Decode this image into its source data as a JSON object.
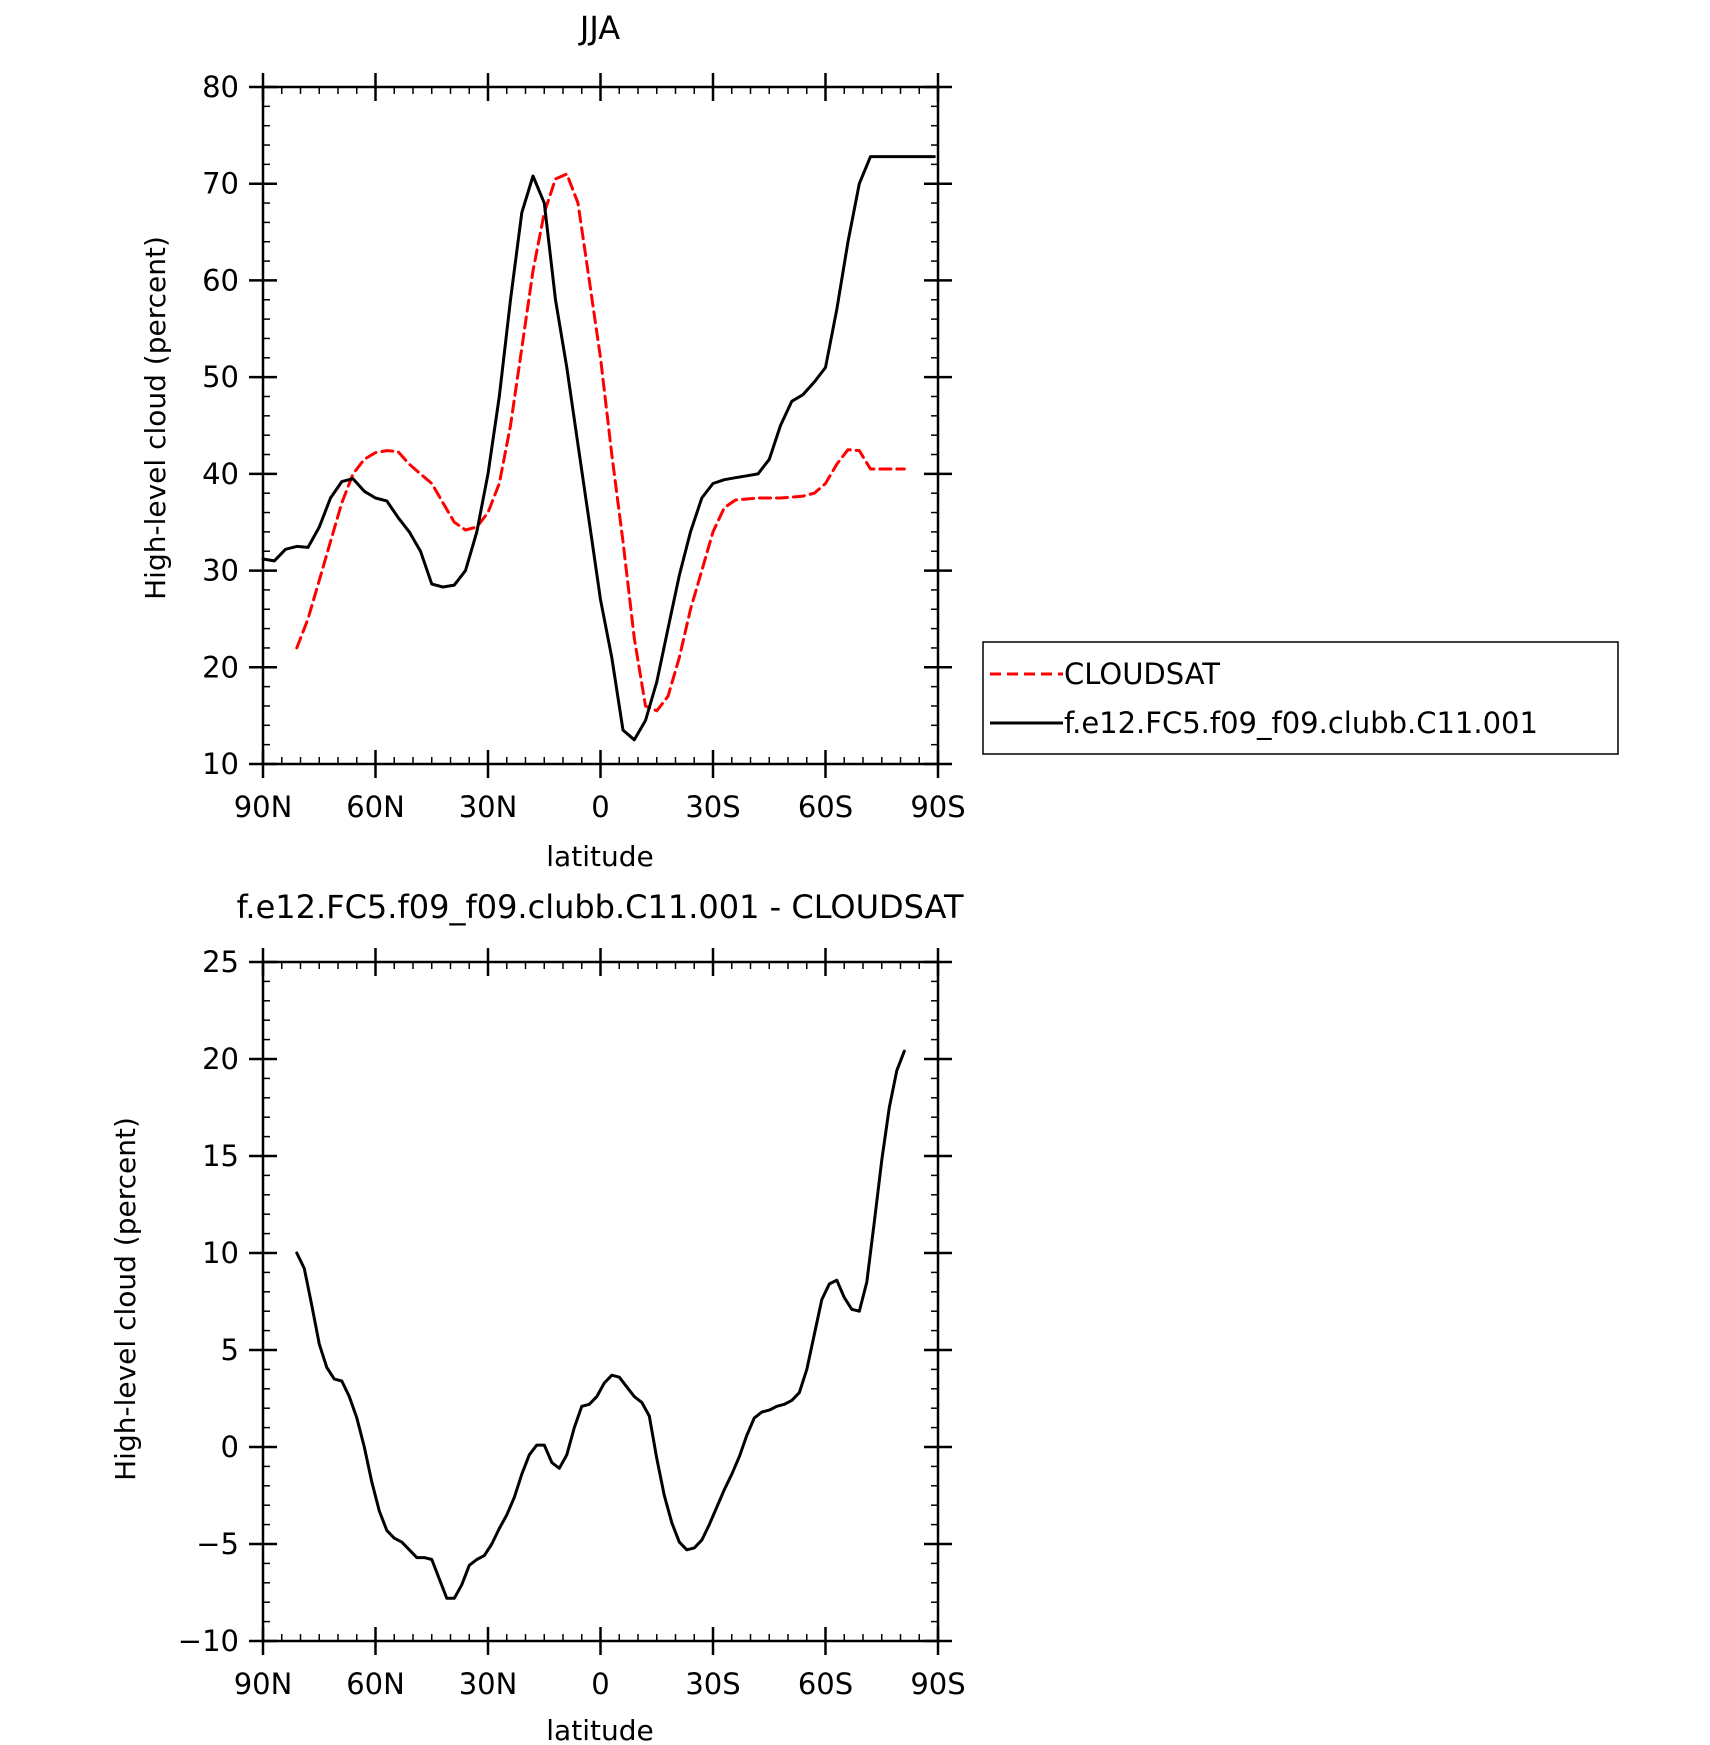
{
  "chart_data": [
    {
      "type": "line",
      "title": "JJA",
      "xlabel": "latitude",
      "ylabel": "High-level cloud (percent)",
      "xlim": [
        90,
        -90
      ],
      "ylim": [
        10,
        80
      ],
      "x_ticks": [
        {
          "value": 90,
          "label": "90N"
        },
        {
          "value": 60,
          "label": "60N"
        },
        {
          "value": 30,
          "label": "30N"
        },
        {
          "value": 0,
          "label": "0"
        },
        {
          "value": -30,
          "label": "30S"
        },
        {
          "value": -60,
          "label": "60S"
        },
        {
          "value": -90,
          "label": "90S"
        }
      ],
      "y_ticks": [
        {
          "value": 10,
          "label": "10"
        },
        {
          "value": 20,
          "label": "20"
        },
        {
          "value": 30,
          "label": "30"
        },
        {
          "value": 40,
          "label": "40"
        },
        {
          "value": 50,
          "label": "50"
        },
        {
          "value": 60,
          "label": "60"
        },
        {
          "value": 70,
          "label": "70"
        },
        {
          "value": 80,
          "label": "80"
        }
      ],
      "legend": "right",
      "series": [
        {
          "name": "CLOUDSAT",
          "color": "#ff0000",
          "dash": "dashed",
          "x": [
            81,
            78,
            75,
            72,
            69,
            66,
            63,
            60,
            57,
            54,
            51,
            48,
            45,
            42,
            39,
            36,
            33,
            30,
            27,
            24,
            21,
            18,
            15,
            12,
            9,
            6,
            3,
            0,
            -3,
            -6,
            -9,
            -12,
            -15,
            -18,
            -21,
            -24,
            -27,
            -30,
            -33,
            -36,
            -39,
            -42,
            -45,
            -48,
            -51,
            -54,
            -57,
            -60,
            -63,
            -66,
            -69,
            -72,
            -75,
            -78,
            -81
          ],
          "y": [
            22,
            25,
            29,
            33,
            37,
            40,
            41.5,
            42.2,
            42.4,
            42.3,
            41,
            40,
            39,
            37,
            35,
            34.2,
            34.5,
            36,
            39,
            45,
            53,
            61,
            67,
            70.5,
            71,
            68,
            60,
            52,
            42,
            33,
            23,
            16,
            15.5,
            17,
            21,
            26,
            30,
            34,
            36.5,
            37.3,
            37.4,
            37.5,
            37.5,
            37.5,
            37.6,
            37.7,
            38,
            39,
            41,
            42.5,
            42.4,
            40.5,
            40.5,
            40.5,
            40.5
          ]
        },
        {
          "name": "f.e12.FC5.f09_f09.clubb.C11.001",
          "color": "#000000",
          "dash": "solid",
          "x": [
            90,
            87,
            84,
            81,
            78,
            75,
            72,
            69,
            66,
            63,
            60,
            57,
            54,
            51,
            48,
            45,
            42,
            39,
            36,
            33,
            30,
            27,
            24,
            21,
            18,
            15,
            12,
            9,
            6,
            3,
            0,
            -3,
            -6,
            -9,
            -12,
            -15,
            -18,
            -21,
            -24,
            -27,
            -30,
            -33,
            -36,
            -39,
            -42,
            -45,
            -48,
            -51,
            -54,
            -57,
            -60,
            -63,
            -66,
            -69,
            -72,
            -75,
            -78,
            -81,
            -84,
            -87,
            -89
          ],
          "y": [
            31.2,
            31.0,
            32.2,
            32.5,
            32.4,
            34.5,
            37.5,
            39.2,
            39.5,
            38.2,
            37.5,
            37.2,
            35.5,
            34,
            32,
            28.6,
            28.3,
            28.5,
            30,
            34,
            40,
            48,
            58,
            67,
            70.8,
            68,
            58,
            51,
            43,
            35,
            27,
            21,
            13.5,
            12.5,
            14.5,
            18.5,
            24,
            29.5,
            34,
            37.5,
            39,
            39.4,
            39.6,
            39.8,
            40,
            41.5,
            45,
            47.5,
            48.2,
            49.5,
            51,
            57,
            64,
            70,
            72.8,
            72.8,
            72.8,
            72.8,
            72.8,
            72.8,
            72.8
          ]
        }
      ]
    },
    {
      "type": "line",
      "title": "f.e12.FC5.f09_f09.clubb.C11.001 - CLOUDSAT",
      "xlabel": "latitude",
      "ylabel": "High-level cloud (percent)",
      "xlim": [
        90,
        -90
      ],
      "ylim": [
        -10,
        25
      ],
      "x_ticks": [
        {
          "value": 90,
          "label": "90N"
        },
        {
          "value": 60,
          "label": "60N"
        },
        {
          "value": 30,
          "label": "30N"
        },
        {
          "value": 0,
          "label": "0"
        },
        {
          "value": -30,
          "label": "30S"
        },
        {
          "value": -60,
          "label": "60S"
        },
        {
          "value": -90,
          "label": "90S"
        }
      ],
      "y_ticks": [
        {
          "value": -10,
          "label": "−10"
        },
        {
          "value": -5,
          "label": "−5"
        },
        {
          "value": 0,
          "label": "0"
        },
        {
          "value": 5,
          "label": "5"
        },
        {
          "value": 10,
          "label": "10"
        },
        {
          "value": 15,
          "label": "15"
        },
        {
          "value": 20,
          "label": "20"
        },
        {
          "value": 25,
          "label": "25"
        }
      ],
      "series": [
        {
          "color": "#000000",
          "dash": "solid",
          "x": [
            81,
            79,
            77,
            75,
            73,
            71,
            69,
            67,
            65,
            63,
            61,
            59,
            57,
            55,
            53,
            51,
            49,
            47,
            45,
            43,
            41,
            39,
            37,
            35,
            33,
            31,
            29,
            27,
            25,
            23,
            21,
            19,
            17,
            15,
            13,
            11,
            9,
            7,
            5,
            3,
            1,
            -1,
            -3,
            -5,
            -7,
            -9,
            -11,
            -13,
            -15,
            -17,
            -19,
            -21,
            -23,
            -25,
            -27,
            -29,
            -31,
            -33,
            -35,
            -37,
            -39,
            -41,
            -43,
            -45,
            -47,
            -49,
            -51,
            -53,
            -55,
            -57,
            -59,
            -61,
            -63,
            -65,
            -67,
            -69,
            -71,
            -73,
            -75,
            -77,
            -79,
            -81
          ],
          "y": [
            10,
            9.2,
            7.3,
            5.3,
            4.1,
            3.5,
            3.4,
            2.6,
            1.5,
            0,
            -1.8,
            -3.3,
            -4.3,
            -4.7,
            -4.9,
            -5.3,
            -5.7,
            -5.7,
            -5.8,
            -6.8,
            -7.8,
            -7.8,
            -7.1,
            -6.1,
            -5.8,
            -5.6,
            -5.0,
            -4.2,
            -3.5,
            -2.6,
            -1.4,
            -0.4,
            0.1,
            0.1,
            -0.8,
            -1.1,
            -0.4,
            1.0,
            2.1,
            2.2,
            2.6,
            3.3,
            3.7,
            3.6,
            3.1,
            2.6,
            2.3,
            1.6,
            -0.6,
            -2.5,
            -3.9,
            -4.9,
            -5.3,
            -5.2,
            -4.8,
            -4.0,
            -3.1,
            -2.2,
            -1.4,
            -0.5,
            0.6,
            1.5,
            1.8,
            1.9,
            2.1,
            2.2,
            2.4,
            2.8,
            4.0,
            5.8,
            7.6,
            8.4,
            8.6,
            7.7,
            7.1,
            7.0,
            8.5,
            11.6,
            14.8,
            17.5,
            19.4,
            20.4
          ]
        }
      ]
    }
  ]
}
